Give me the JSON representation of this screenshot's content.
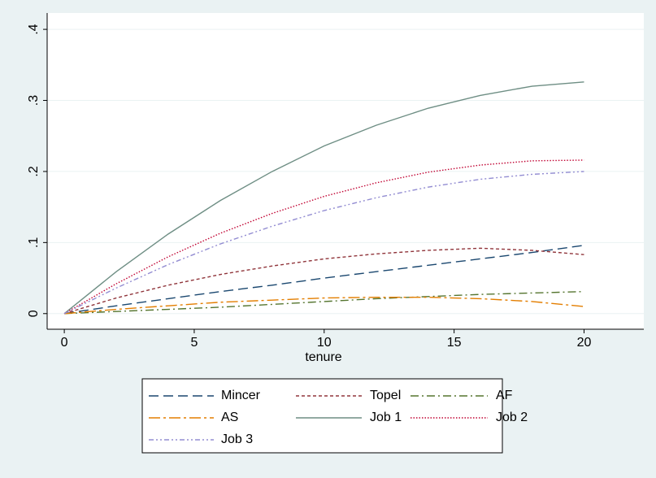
{
  "chart_data": {
    "type": "line",
    "x_label": "tenure",
    "x": [
      0,
      2,
      4,
      6,
      8,
      10,
      12,
      14,
      16,
      18,
      20
    ],
    "series": [
      {
        "name": "Mincer",
        "color": "#1a476f",
        "dash": "12,6",
        "values": [
          0,
          0.011,
          0.021,
          0.031,
          0.04,
          0.05,
          0.059,
          0.068,
          0.077,
          0.086,
          0.096
        ]
      },
      {
        "name": "Topel",
        "color": "#90353b",
        "dash": "4,3",
        "values": [
          0,
          0.022,
          0.04,
          0.055,
          0.067,
          0.077,
          0.084,
          0.089,
          0.092,
          0.089,
          0.083
        ]
      },
      {
        "name": "AF",
        "color": "#55752f",
        "dash": "10,4,2,4",
        "values": [
          0,
          0.003,
          0.006,
          0.009,
          0.013,
          0.017,
          0.021,
          0.024,
          0.027,
          0.029,
          0.031
        ]
      },
      {
        "name": "AS",
        "color": "#e37e00",
        "dash": "14,4,3,4",
        "values": [
          0,
          0.006,
          0.011,
          0.016,
          0.019,
          0.022,
          0.023,
          0.023,
          0.021,
          0.017,
          0.01
        ]
      },
      {
        "name": "Job 1",
        "color": "#6e8e84",
        "dash": "none",
        "values": [
          0,
          0.059,
          0.112,
          0.159,
          0.2,
          0.236,
          0.265,
          0.289,
          0.307,
          0.32,
          0.326
        ]
      },
      {
        "name": "Job 2",
        "color": "#c10534",
        "dash": "1.5,2",
        "values": [
          0,
          0.042,
          0.08,
          0.113,
          0.141,
          0.165,
          0.184,
          0.199,
          0.209,
          0.215,
          0.216
        ]
      },
      {
        "name": "Job 3",
        "color": "#938dd2",
        "dash": "6,3,2,3,2,3",
        "values": [
          0,
          0.036,
          0.069,
          0.098,
          0.123,
          0.145,
          0.163,
          0.178,
          0.189,
          0.196,
          0.2
        ]
      }
    ],
    "xlim": [
      -0.66,
      22.3
    ],
    "xticks": [
      0,
      5,
      10,
      15,
      20
    ],
    "ylim": [
      -0.022,
      0.423
    ],
    "yticks": [
      0,
      {
        "value": 0.1,
        "label": ".1"
      },
      {
        "value": 0.2,
        "label": ".2"
      },
      {
        "value": 0.3,
        "label": ".3"
      },
      {
        "value": 0.4,
        "label": ".4"
      }
    ],
    "grid": true,
    "legend": "bottom"
  }
}
